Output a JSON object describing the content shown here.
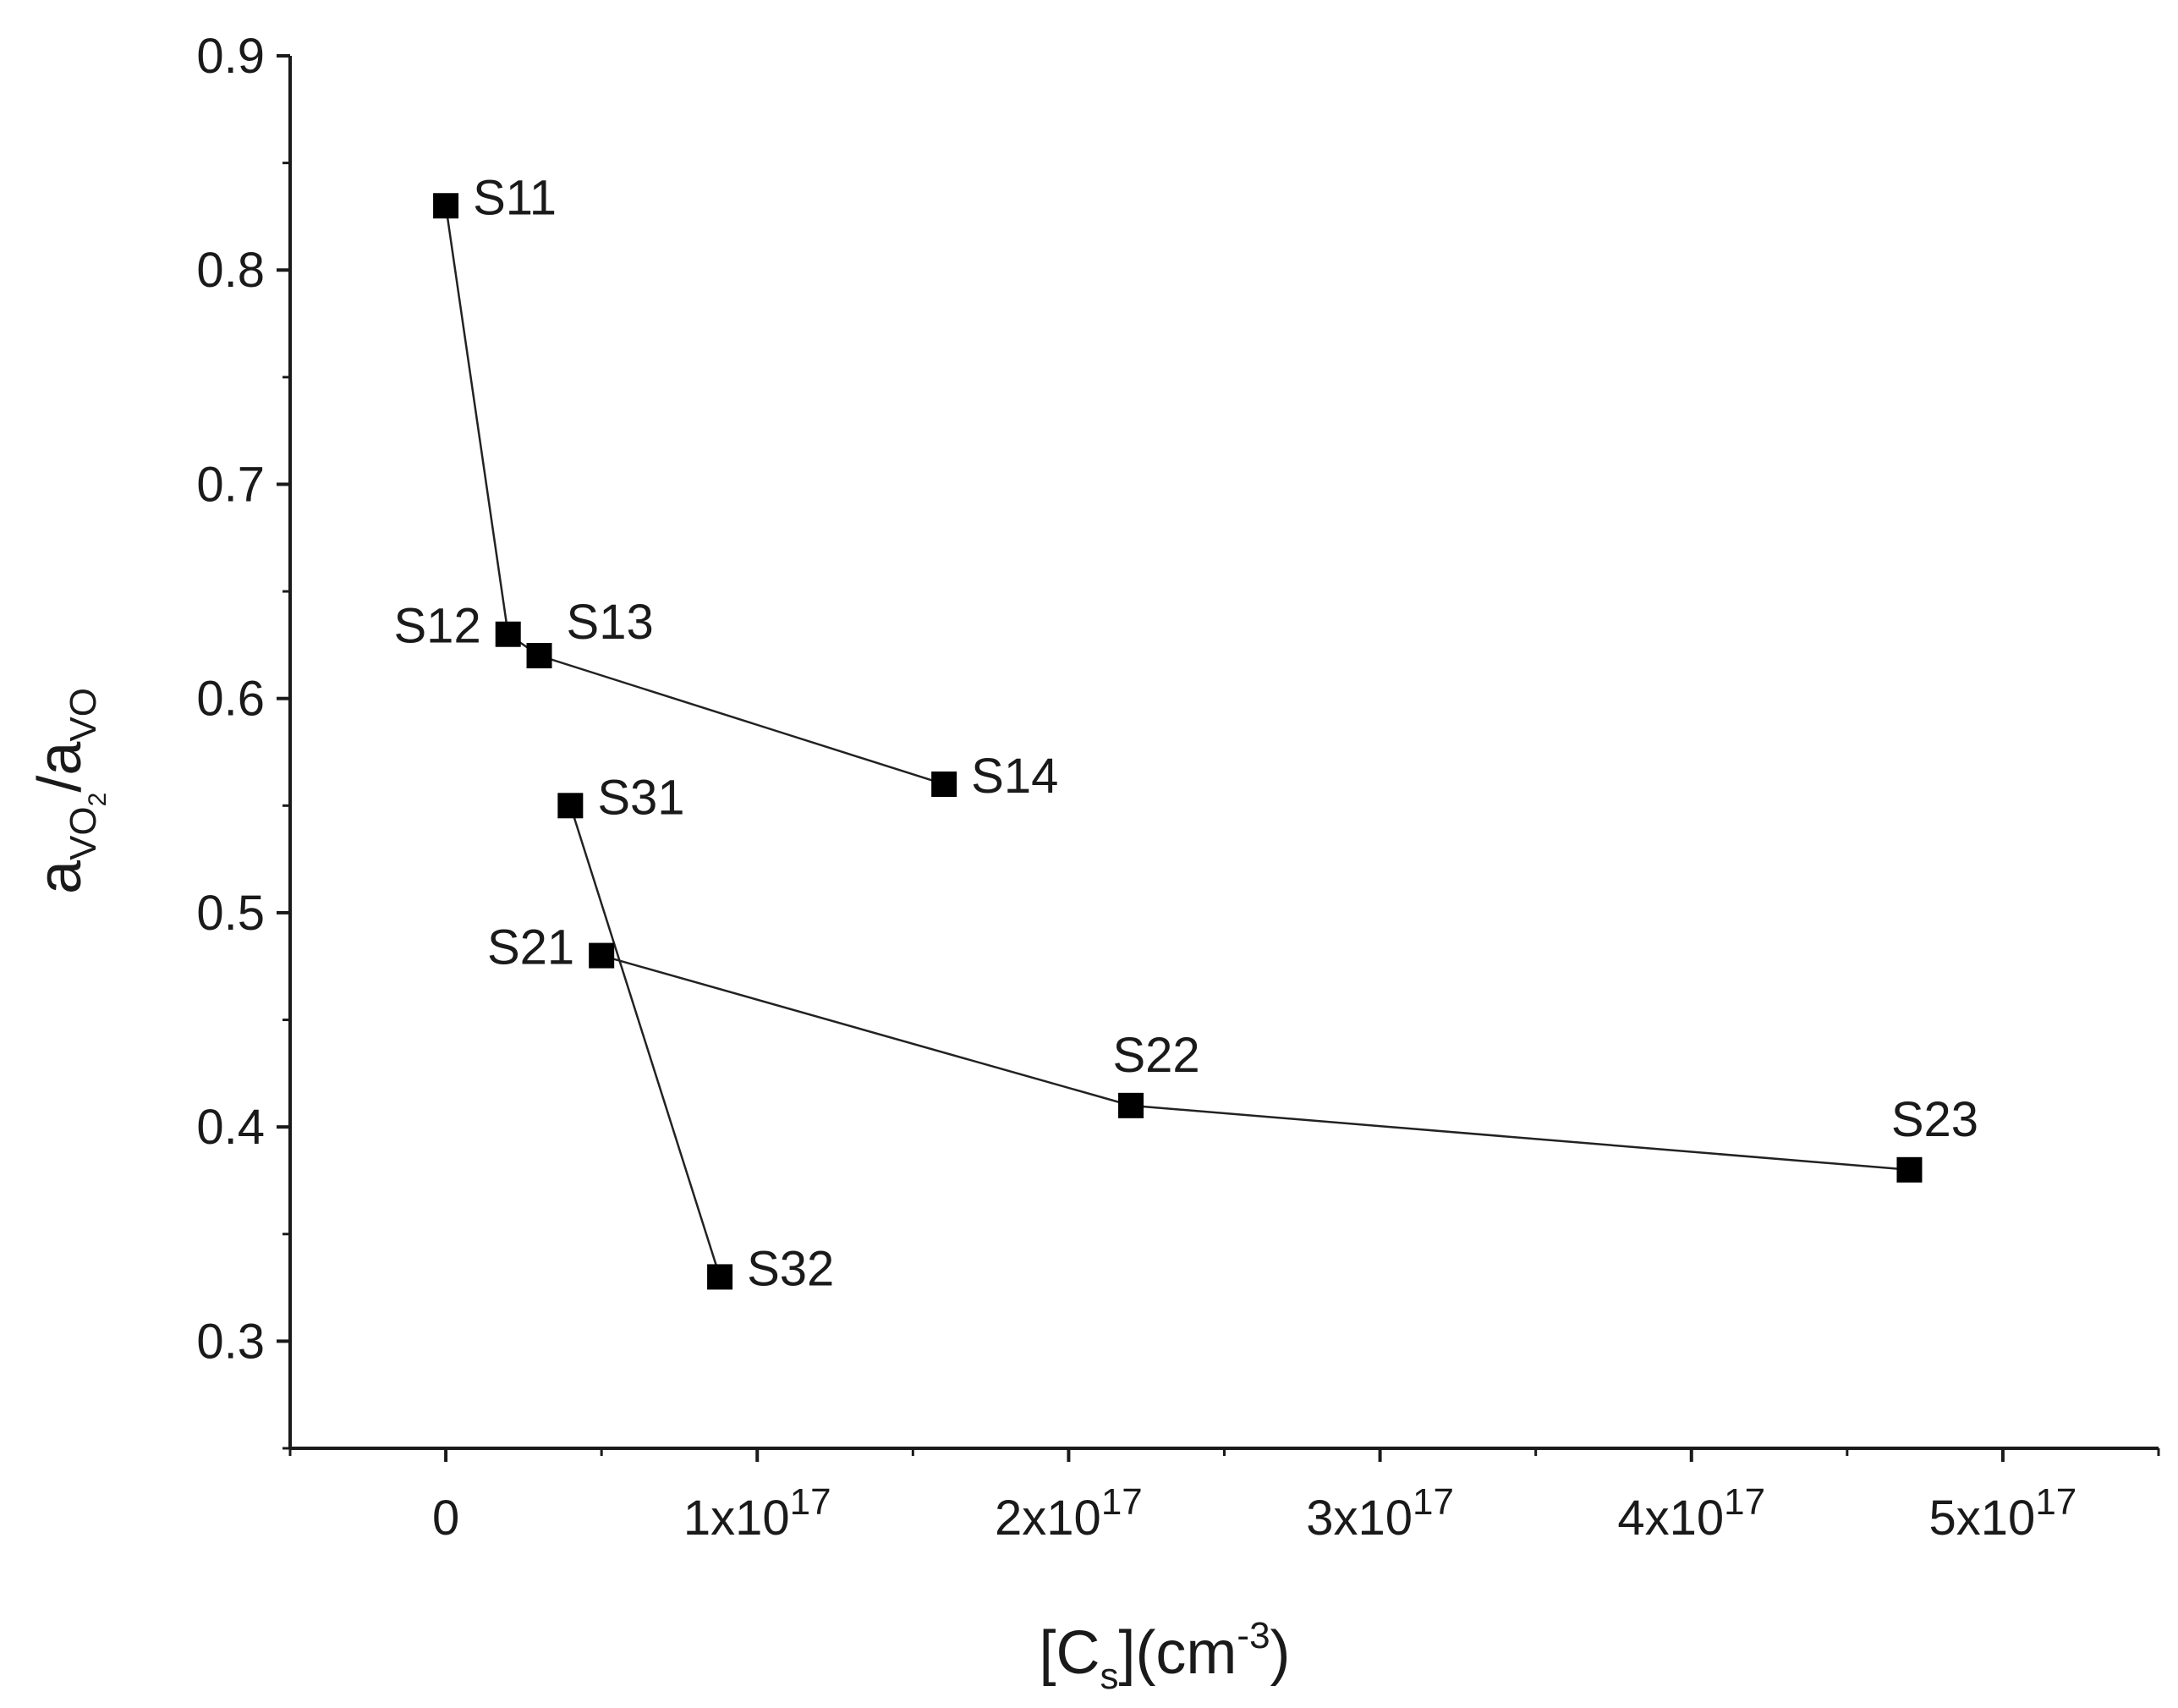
{
  "chart_data": {
    "type": "scatter",
    "title": "",
    "xlabel": {
      "base": "[C",
      "sub": "s",
      "mid": "](cm",
      "sup": "-3",
      "end": ")"
    },
    "ylabel": {
      "a1": "a",
      "sub1": "VO",
      "sub1sub": "2",
      "slash": "/a",
      "sub2": "VO"
    },
    "xlim": [
      -5e+16,
      5.5e+17
    ],
    "ylim": [
      0.25,
      0.9
    ],
    "grid": false,
    "x_ticks": [
      {
        "value": 0,
        "label": "0",
        "exp": ""
      },
      {
        "value": 1e+17,
        "label": "1x10",
        "exp": "17"
      },
      {
        "value": 2e+17,
        "label": "2x10",
        "exp": "17"
      },
      {
        "value": 3e+17,
        "label": "3x10",
        "exp": "17"
      },
      {
        "value": 4e+17,
        "label": "4x10",
        "exp": "17"
      },
      {
        "value": 5e+17,
        "label": "5x10",
        "exp": "17"
      }
    ],
    "y_ticks": [
      {
        "value": 0.3,
        "label": "0.3"
      },
      {
        "value": 0.4,
        "label": "0.4"
      },
      {
        "value": 0.5,
        "label": "0.5"
      },
      {
        "value": 0.6,
        "label": "0.6"
      },
      {
        "value": 0.7,
        "label": "0.7"
      },
      {
        "value": 0.8,
        "label": "0.8"
      },
      {
        "value": 0.9,
        "label": "0.9"
      }
    ],
    "series": [
      {
        "points": [
          {
            "label": "S11",
            "x": 0,
            "y": 0.83,
            "anchor": "right"
          },
          {
            "label": "S12",
            "x": 2e+16,
            "y": 0.63,
            "anchor": "left"
          },
          {
            "label": "S13",
            "x": 3e+16,
            "y": 0.62,
            "anchor": "above-right"
          },
          {
            "label": "S14",
            "x": 1.6e+17,
            "y": 0.56,
            "anchor": "right"
          }
        ]
      },
      {
        "points": [
          {
            "label": "S21",
            "x": 5e+16,
            "y": 0.48,
            "anchor": "left"
          },
          {
            "label": "S22",
            "x": 2.2e+17,
            "y": 0.41,
            "anchor": "above"
          },
          {
            "label": "S23",
            "x": 4.7e+17,
            "y": 0.38,
            "anchor": "above"
          }
        ]
      },
      {
        "points": [
          {
            "label": "S31",
            "x": 4e+16,
            "y": 0.55,
            "anchor": "right"
          },
          {
            "label": "S32",
            "x": 8.8e+16,
            "y": 0.33,
            "anchor": "right"
          }
        ]
      }
    ],
    "colors": {
      "marker": "#000000",
      "line": "#222222",
      "axis": "#1a1a1a"
    }
  }
}
